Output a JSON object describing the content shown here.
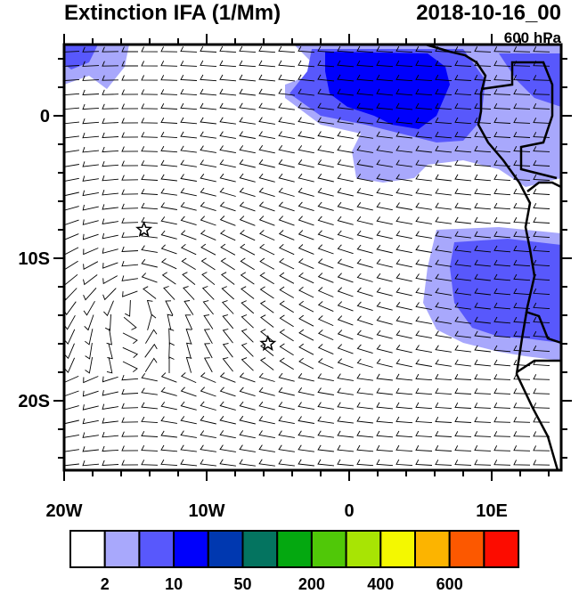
{
  "title": "Extinction IFA (1/Mm)",
  "datetime": "2018-10-16_00",
  "level": "600 hPa",
  "axes": {
    "x_ticks": [
      {
        "lon": -20,
        "label": "20W"
      },
      {
        "lon": -10,
        "label": "10W"
      },
      {
        "lon": 0,
        "label": "0"
      },
      {
        "lon": 10,
        "label": "10E"
      }
    ],
    "y_ticks": [
      {
        "lat": 0,
        "label": "0"
      },
      {
        "lat": -10,
        "label": "10S"
      },
      {
        "lat": -20,
        "label": "20S"
      }
    ],
    "lon_range": [
      -20,
      15
    ],
    "lat_range": [
      -24.9,
      5
    ]
  },
  "markers": [
    {
      "type": "star",
      "lon": -14.4,
      "lat": -8.0
    },
    {
      "type": "star",
      "lon": -5.7,
      "lat": -16.0
    }
  ],
  "colorbar": {
    "colors": [
      "#ffffff",
      "#a8a8fc",
      "#5858fc",
      "#0000fc",
      "#0038b0",
      "#047460",
      "#04a810",
      "#50c808",
      "#a8e404",
      "#f4f800",
      "#fcb400",
      "#fc5800",
      "#fc0c00"
    ],
    "labels": [
      {
        "after_box": 1,
        "text": "2"
      },
      {
        "after_box": 3,
        "text": "10"
      },
      {
        "after_box": 5,
        "text": "50"
      },
      {
        "after_box": 7,
        "text": "200"
      },
      {
        "after_box": 9,
        "text": "400"
      },
      {
        "after_box": 11,
        "text": "600"
      }
    ]
  }
}
